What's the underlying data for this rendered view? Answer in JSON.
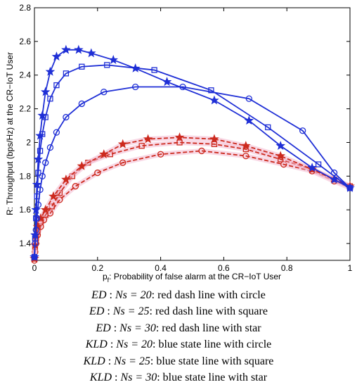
{
  "chart_data": {
    "type": "line",
    "xlabel": "p_f: Probability of false alarm at the CR−IoT User",
    "xlabel_main": "p",
    "xlabel_sub": "f",
    "xlabel_rest": ": Probability of false alarm at the CR−IoT User",
    "ylabel": "R: Throughput (bps/Hz) at the CR−IoT User",
    "xlim": [
      0,
      1
    ],
    "ylim": [
      1.3,
      2.8
    ],
    "xticks": [
      "0",
      "0.2",
      "0.4",
      "0.6",
      "0.8",
      "1"
    ],
    "yticks": [
      "1.4",
      "1.6",
      "1.8",
      "2",
      "2.2",
      "2.4",
      "2.6",
      "2.8"
    ],
    "grid": false,
    "series": [
      {
        "name": "ED : Ns = 20",
        "color": "#cc2a1e",
        "dash": true,
        "marker": "circle",
        "x": [
          0,
          0.002,
          0.005,
          0.01,
          0.02,
          0.03,
          0.05,
          0.08,
          0.13,
          0.2,
          0.28,
          0.4,
          0.53,
          0.67,
          0.79,
          0.88,
          0.95,
          1.0
        ],
        "y": [
          1.3,
          1.35,
          1.4,
          1.45,
          1.5,
          1.54,
          1.58,
          1.66,
          1.74,
          1.82,
          1.88,
          1.93,
          1.95,
          1.92,
          1.87,
          1.83,
          1.77,
          1.73
        ]
      },
      {
        "name": "ED : Ns = 25",
        "color": "#cc2a1e",
        "dash": true,
        "marker": "square",
        "x": [
          0,
          0.002,
          0.005,
          0.01,
          0.02,
          0.035,
          0.055,
          0.08,
          0.12,
          0.17,
          0.24,
          0.34,
          0.46,
          0.57,
          0.67,
          0.78,
          0.88,
          0.95,
          1.0
        ],
        "y": [
          1.31,
          1.38,
          1.43,
          1.48,
          1.53,
          1.57,
          1.62,
          1.7,
          1.8,
          1.88,
          1.93,
          1.98,
          2.0,
          1.99,
          1.96,
          1.9,
          1.84,
          1.78,
          1.74
        ]
      },
      {
        "name": "ED : Ns = 30",
        "color": "#cc2a1e",
        "dash": true,
        "marker": "star",
        "x": [
          0,
          0.002,
          0.005,
          0.01,
          0.02,
          0.035,
          0.06,
          0.1,
          0.15,
          0.22,
          0.28,
          0.36,
          0.46,
          0.57,
          0.67,
          0.78,
          0.88,
          0.95,
          1.0
        ],
        "y": [
          1.31,
          1.39,
          1.45,
          1.5,
          1.55,
          1.6,
          1.68,
          1.78,
          1.86,
          1.93,
          1.99,
          2.02,
          2.03,
          2.02,
          1.98,
          1.92,
          1.84,
          1.78,
          1.74
        ]
      },
      {
        "name": "KLD : Ns = 20",
        "color": "#1f2fd6",
        "dash": false,
        "marker": "circle",
        "x": [
          0,
          0.002,
          0.005,
          0.008,
          0.012,
          0.018,
          0.025,
          0.035,
          0.05,
          0.07,
          0.1,
          0.15,
          0.22,
          0.32,
          0.47,
          0.68,
          0.85,
          0.95,
          1.0
        ],
        "y": [
          1.32,
          1.4,
          1.48,
          1.55,
          1.63,
          1.72,
          1.8,
          1.88,
          1.97,
          2.06,
          2.15,
          2.23,
          2.3,
          2.33,
          2.33,
          2.26,
          2.07,
          1.82,
          1.73
        ]
      },
      {
        "name": "KLD : Ns = 25",
        "color": "#1f2fd6",
        "dash": false,
        "marker": "square",
        "x": [
          0,
          0.002,
          0.005,
          0.008,
          0.012,
          0.018,
          0.025,
          0.035,
          0.05,
          0.07,
          0.1,
          0.15,
          0.23,
          0.38,
          0.56,
          0.74,
          0.9,
          1.0
        ],
        "y": [
          1.32,
          1.43,
          1.55,
          1.68,
          1.82,
          1.95,
          2.05,
          2.15,
          2.26,
          2.34,
          2.41,
          2.45,
          2.46,
          2.43,
          2.31,
          2.09,
          1.87,
          1.73
        ]
      },
      {
        "name": "KLD : Ns = 30",
        "color": "#1f2fd6",
        "dash": false,
        "marker": "star",
        "x": [
          0,
          0.002,
          0.005,
          0.008,
          0.012,
          0.018,
          0.025,
          0.035,
          0.05,
          0.07,
          0.1,
          0.14,
          0.18,
          0.25,
          0.32,
          0.42,
          0.57,
          0.68,
          0.78,
          0.88,
          0.95,
          1.0
        ],
        "y": [
          1.32,
          1.45,
          1.6,
          1.75,
          1.9,
          2.04,
          2.16,
          2.3,
          2.42,
          2.51,
          2.55,
          2.55,
          2.53,
          2.49,
          2.44,
          2.36,
          2.25,
          2.13,
          1.98,
          1.85,
          1.78,
          1.73
        ]
      }
    ]
  },
  "legend_caption": [
    {
      "method": "ED",
      "ns": "Ns = 20",
      "desc": ": red dash line with circle"
    },
    {
      "method": "ED",
      "ns": "Ns = 25",
      "desc": ": red dash line with square"
    },
    {
      "method": "ED",
      "ns": "Ns = 30",
      "desc": ": red dash line with star"
    },
    {
      "method": "KLD",
      "ns": "Ns = 20",
      "desc": ": blue state line with circle"
    },
    {
      "method": "KLD",
      "ns": "Ns = 25",
      "desc": ": blue state line with square"
    },
    {
      "method": "KLD",
      "ns": "Ns = 30",
      "desc": ": blue state line with star"
    }
  ]
}
